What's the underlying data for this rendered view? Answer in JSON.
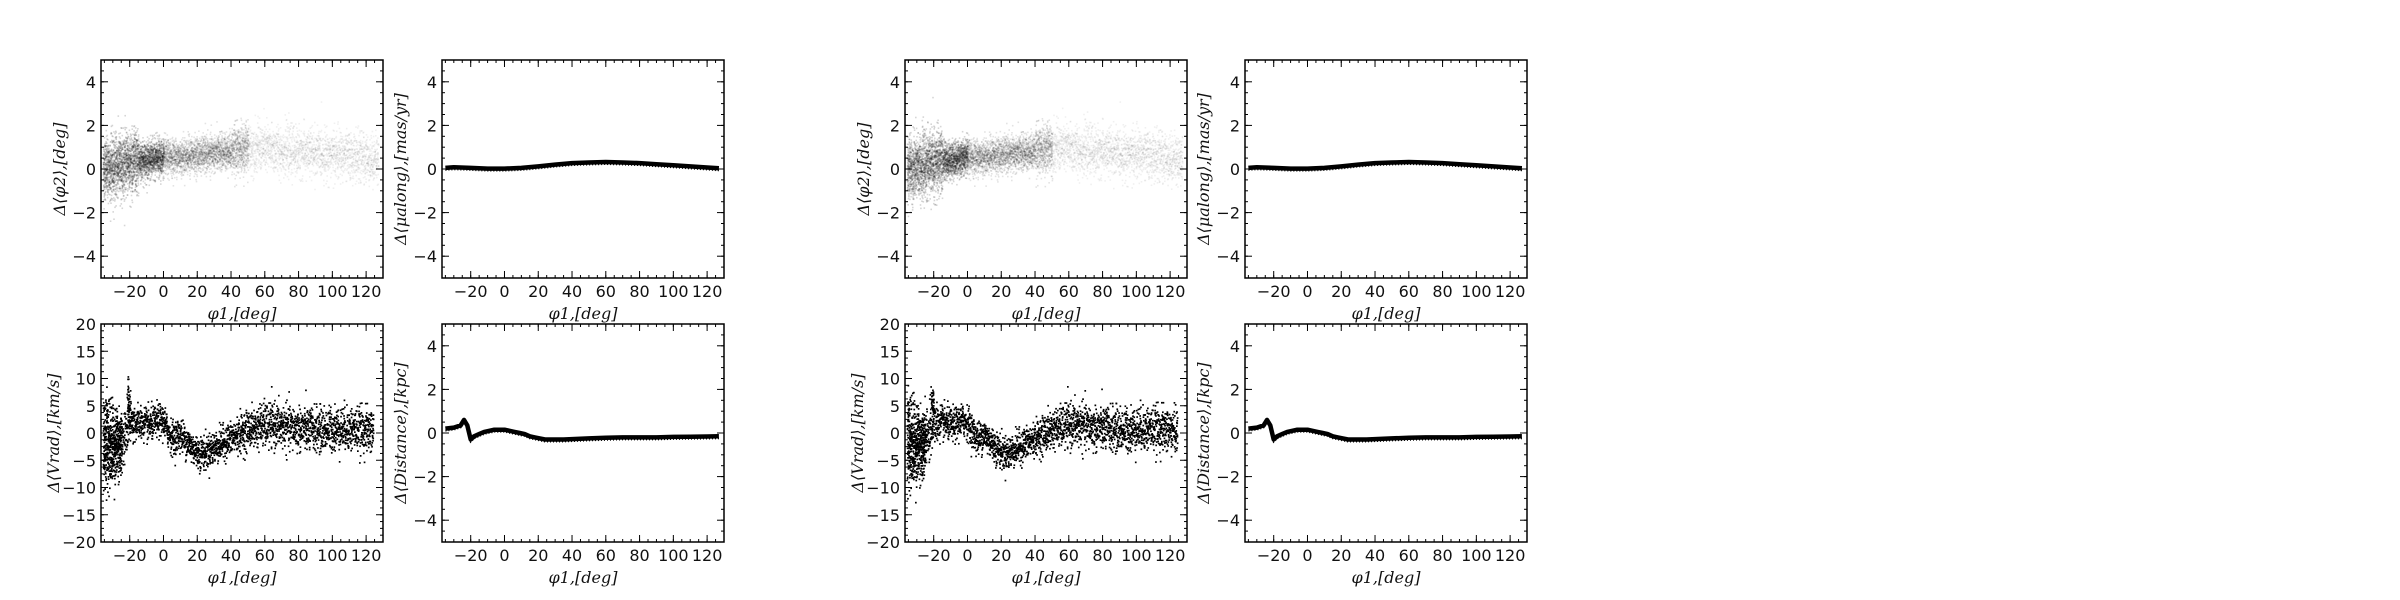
{
  "chart_data": [
    {
      "id": "A-dphi2",
      "type": "scatter",
      "xlabel": "φ1,[deg]",
      "ylabel": "Δ⟨φ2⟩,[deg]",
      "xlim": [
        -37,
        130
      ],
      "ylim": [
        -5,
        5
      ],
      "xticks": [
        -20,
        0,
        20,
        40,
        60,
        80,
        100,
        120
      ],
      "yticks": [
        -4,
        -2,
        0,
        2,
        4
      ],
      "grid": false,
      "series": [
        {
          "style": "diffuse",
          "x": [
            -34,
            -30,
            -26,
            -22,
            -18,
            -14,
            -10,
            -6,
            -2,
            2,
            6,
            10,
            14,
            18,
            22,
            26,
            30,
            34,
            38,
            42,
            46,
            50,
            54,
            58,
            62,
            66,
            70,
            74,
            78,
            82,
            86,
            90,
            94,
            98,
            102,
            106,
            110,
            114,
            118,
            122
          ],
          "y": [
            0.05,
            0.1,
            0.2,
            0.3,
            0.35,
            0.4,
            0.45,
            0.5,
            0.55,
            0.55,
            0.6,
            0.6,
            0.65,
            0.65,
            0.7,
            0.7,
            0.75,
            0.8,
            0.85,
            0.9,
            0.95,
            1.0,
            1.0,
            1.0,
            0.95,
            0.9,
            0.9,
            0.85,
            0.85,
            0.8,
            0.8,
            0.75,
            0.75,
            0.7,
            0.7,
            0.65,
            0.6,
            0.6,
            0.55,
            0.5
          ]
        }
      ]
    },
    {
      "id": "A-dmu",
      "type": "line",
      "xlabel": "φ1,[deg]",
      "ylabel": "Δ⟨μalong⟩,[mas/yr]",
      "xlim": [
        -37,
        130
      ],
      "ylim": [
        -5,
        5
      ],
      "xticks": [
        -20,
        0,
        20,
        40,
        60,
        80,
        100,
        120
      ],
      "yticks": [
        -4,
        -2,
        0,
        2,
        4
      ],
      "grid": false,
      "series": [
        {
          "style": "band",
          "x": [
            -35,
            -30,
            -20,
            -10,
            0,
            10,
            20,
            30,
            40,
            50,
            60,
            70,
            80,
            90,
            100,
            110,
            120,
            127
          ],
          "y": [
            0.05,
            0.08,
            0.05,
            0.02,
            0.02,
            0.05,
            0.12,
            0.2,
            0.27,
            0.3,
            0.32,
            0.3,
            0.27,
            0.22,
            0.17,
            0.12,
            0.07,
            0.03
          ]
        }
      ]
    },
    {
      "id": "A-dvrad",
      "type": "scatter",
      "xlabel": "φ1,[deg]",
      "ylabel": "Δ⟨Vrad⟩,[km/s]",
      "xlim": [
        -37,
        130
      ],
      "ylim": [
        -20,
        20
      ],
      "xticks": [
        -20,
        0,
        20,
        40,
        60,
        80,
        100,
        120
      ],
      "yticks": [
        -20,
        -15,
        -10,
        -5,
        0,
        5,
        10,
        15,
        20
      ],
      "grid": false,
      "series": [
        {
          "style": "points",
          "x": [
            -36,
            -33,
            -30,
            -27,
            -24,
            -21,
            -18,
            -15,
            -12,
            -9,
            -6,
            -3,
            0,
            3,
            6,
            9,
            12,
            15,
            18,
            21,
            24,
            27,
            30,
            33,
            36,
            39,
            42,
            45,
            48,
            51,
            54,
            57,
            60,
            63,
            66,
            69,
            72,
            75,
            78,
            81,
            84,
            87,
            90,
            93,
            96,
            99,
            102,
            105,
            108,
            111,
            114,
            117,
            120,
            123
          ],
          "y": [
            -1.0,
            -1.5,
            -2.0,
            -2.0,
            -1.0,
            1.5,
            2.0,
            2.0,
            1.8,
            1.5,
            2.0,
            2.5,
            2.0,
            0.0,
            -1.0,
            0.0,
            -1.0,
            -2.0,
            -3.0,
            -3.5,
            -3.5,
            -3.0,
            -2.5,
            -2.0,
            -1.5,
            -1.0,
            -0.5,
            0.0,
            0.5,
            1.0,
            1.0,
            1.5,
            1.5,
            1.5,
            1.5,
            1.3,
            1.2,
            1.0,
            1.0,
            1.0,
            0.8,
            0.8,
            0.7,
            0.7,
            0.8,
            0.9,
            1.0,
            1.0,
            1.0,
            0.9,
            0.8,
            0.7,
            0.6,
            0.5
          ],
          "spread": [
            8,
            8,
            7,
            6,
            5,
            4,
            3.5,
            3,
            3,
            3,
            3,
            3,
            3,
            3,
            3,
            3,
            3,
            3,
            3,
            3,
            3,
            3,
            3,
            3,
            3,
            3,
            3,
            3.5,
            3.5,
            3.5,
            3.5,
            4,
            4,
            4,
            4,
            4,
            4,
            4,
            4,
            4,
            4,
            4,
            4,
            4,
            4,
            4,
            4,
            4,
            4,
            4,
            4,
            4,
            4,
            4
          ]
        }
      ]
    },
    {
      "id": "A-ddist",
      "type": "line",
      "xlabel": "φ1,[deg]",
      "ylabel": "Δ⟨Distance⟩,[kpc]",
      "xlim": [
        -37,
        130
      ],
      "ylim": [
        -5,
        5
      ],
      "xticks": [
        -20,
        0,
        20,
        40,
        60,
        80,
        100,
        120
      ],
      "yticks": [
        -4,
        -2,
        0,
        2,
        4
      ],
      "grid": false,
      "series": [
        {
          "style": "band",
          "x": [
            -35,
            -30,
            -26,
            -24,
            -22,
            -20,
            -18,
            -15,
            -12,
            -9,
            -6,
            -3,
            0,
            3,
            6,
            9,
            12,
            15,
            18,
            21,
            24,
            27,
            30,
            35,
            40,
            50,
            60,
            70,
            80,
            90,
            100,
            110,
            120,
            127
          ],
          "y": [
            0.2,
            0.25,
            0.35,
            0.6,
            0.35,
            -0.3,
            -0.15,
            -0.05,
            0.05,
            0.1,
            0.15,
            0.15,
            0.15,
            0.1,
            0.05,
            0.0,
            -0.05,
            -0.15,
            -0.2,
            -0.25,
            -0.3,
            -0.3,
            -0.3,
            -0.3,
            -0.28,
            -0.25,
            -0.22,
            -0.2,
            -0.2,
            -0.2,
            -0.18,
            -0.17,
            -0.16,
            -0.15
          ]
        }
      ]
    },
    {
      "id": "B-dphi2",
      "type": "scatter",
      "xlabel": "φ1,[deg]",
      "ylabel": "Δ⟨φ2⟩,[deg]",
      "xlim": [
        -37,
        130
      ],
      "ylim": [
        -5,
        5
      ],
      "xticks": [
        -20,
        0,
        20,
        40,
        60,
        80,
        100,
        120
      ],
      "yticks": [
        -4,
        -2,
        0,
        2,
        4
      ],
      "grid": false,
      "series": [
        {
          "style": "diffuse",
          "x": [
            -34,
            -30,
            -26,
            -22,
            -18,
            -14,
            -10,
            -6,
            -2,
            2,
            6,
            10,
            14,
            18,
            22,
            26,
            30,
            34,
            38,
            42,
            46,
            50,
            54,
            58,
            62,
            66,
            70,
            74,
            78,
            82,
            86,
            90,
            94,
            98,
            102,
            106,
            110,
            114,
            118,
            122
          ],
          "y": [
            0.05,
            0.1,
            0.2,
            0.3,
            0.35,
            0.4,
            0.45,
            0.5,
            0.55,
            0.55,
            0.6,
            0.6,
            0.65,
            0.65,
            0.7,
            0.7,
            0.75,
            0.8,
            0.85,
            0.9,
            0.95,
            1.0,
            1.0,
            1.0,
            0.95,
            0.9,
            0.9,
            0.85,
            0.85,
            0.8,
            0.8,
            0.75,
            0.75,
            0.7,
            0.7,
            0.65,
            0.6,
            0.6,
            0.55,
            0.5
          ]
        }
      ]
    },
    {
      "id": "B-dmu",
      "type": "line",
      "xlabel": "φ1,[deg]",
      "ylabel": "Δ⟨μalong⟩,[mas/yr]",
      "xlim": [
        -37,
        130
      ],
      "ylim": [
        -5,
        5
      ],
      "xticks": [
        -20,
        0,
        20,
        40,
        60,
        80,
        100,
        120
      ],
      "yticks": [
        -4,
        -2,
        0,
        2,
        4
      ],
      "grid": false,
      "series": [
        {
          "style": "band",
          "x": [
            -35,
            -30,
            -20,
            -10,
            0,
            10,
            20,
            30,
            40,
            50,
            60,
            70,
            80,
            90,
            100,
            110,
            120,
            127
          ],
          "y": [
            0.05,
            0.08,
            0.05,
            0.02,
            0.02,
            0.05,
            0.12,
            0.2,
            0.27,
            0.3,
            0.32,
            0.3,
            0.27,
            0.22,
            0.17,
            0.12,
            0.07,
            0.03
          ]
        }
      ]
    },
    {
      "id": "B-dvrad",
      "type": "scatter",
      "xlabel": "φ1,[deg]",
      "ylabel": "Δ⟨Vrad⟩,[km/s]",
      "xlim": [
        -37,
        130
      ],
      "ylim": [
        -20,
        20
      ],
      "xticks": [
        -20,
        0,
        20,
        40,
        60,
        80,
        100,
        120
      ],
      "yticks": [
        -20,
        -15,
        -10,
        -5,
        0,
        5,
        10,
        15,
        20
      ],
      "grid": false,
      "series": [
        {
          "style": "points",
          "x": [
            -36,
            -33,
            -30,
            -27,
            -24,
            -21,
            -18,
            -15,
            -12,
            -9,
            -6,
            -3,
            0,
            3,
            6,
            9,
            12,
            15,
            18,
            21,
            24,
            27,
            30,
            33,
            36,
            39,
            42,
            45,
            48,
            51,
            54,
            57,
            60,
            63,
            66,
            69,
            72,
            75,
            78,
            81,
            84,
            87,
            90,
            93,
            96,
            99,
            102,
            105,
            108,
            111,
            114,
            117,
            120,
            123
          ],
          "y": [
            -1.0,
            -1.5,
            -2.0,
            -2.0,
            -1.0,
            1.5,
            2.0,
            2.0,
            1.8,
            1.5,
            2.0,
            2.5,
            2.0,
            0.0,
            -1.0,
            0.0,
            -1.0,
            -2.0,
            -3.0,
            -3.5,
            -3.5,
            -3.0,
            -2.5,
            -2.0,
            -1.5,
            -1.0,
            -0.5,
            0.0,
            0.5,
            1.0,
            1.0,
            1.5,
            1.5,
            1.5,
            1.5,
            1.3,
            1.2,
            1.0,
            1.0,
            1.0,
            0.8,
            0.8,
            0.7,
            0.7,
            0.8,
            0.9,
            1.0,
            1.0,
            1.0,
            0.9,
            0.8,
            0.7,
            0.6,
            0.5
          ],
          "spread": [
            8,
            8,
            7,
            6,
            5,
            4,
            3.5,
            3,
            3,
            3,
            3,
            3,
            3,
            3,
            3,
            3,
            3,
            3,
            3,
            3,
            3,
            3,
            3,
            3,
            3,
            3,
            3,
            3.5,
            3.5,
            3.5,
            3.5,
            4,
            4,
            4,
            4,
            4,
            4,
            4,
            4,
            4,
            4,
            4,
            4,
            4,
            4,
            4,
            4,
            4,
            4,
            4,
            4,
            4,
            4,
            4
          ]
        }
      ]
    },
    {
      "id": "B-ddist",
      "type": "line",
      "xlabel": "φ1,[deg]",
      "ylabel": "Δ⟨Distance⟩,[kpc]",
      "xlim": [
        -37,
        130
      ],
      "ylim": [
        -5,
        5
      ],
      "xticks": [
        -20,
        0,
        20,
        40,
        60,
        80,
        100,
        120
      ],
      "yticks": [
        -4,
        -2,
        0,
        2,
        4
      ],
      "grid": false,
      "series": [
        {
          "style": "band",
          "x": [
            -35,
            -30,
            -26,
            -24,
            -22,
            -20,
            -18,
            -15,
            -12,
            -9,
            -6,
            -3,
            0,
            3,
            6,
            9,
            12,
            15,
            18,
            21,
            24,
            27,
            30,
            35,
            40,
            50,
            60,
            70,
            80,
            90,
            100,
            110,
            120,
            127
          ],
          "y": [
            0.2,
            0.25,
            0.35,
            0.6,
            0.35,
            -0.3,
            -0.15,
            -0.05,
            0.05,
            0.1,
            0.15,
            0.15,
            0.15,
            0.1,
            0.05,
            0.0,
            -0.05,
            -0.15,
            -0.2,
            -0.25,
            -0.3,
            -0.3,
            -0.3,
            -0.3,
            -0.28,
            -0.25,
            -0.22,
            -0.2,
            -0.2,
            -0.2,
            -0.18,
            -0.17,
            -0.16,
            -0.15
          ]
        }
      ]
    }
  ]
}
